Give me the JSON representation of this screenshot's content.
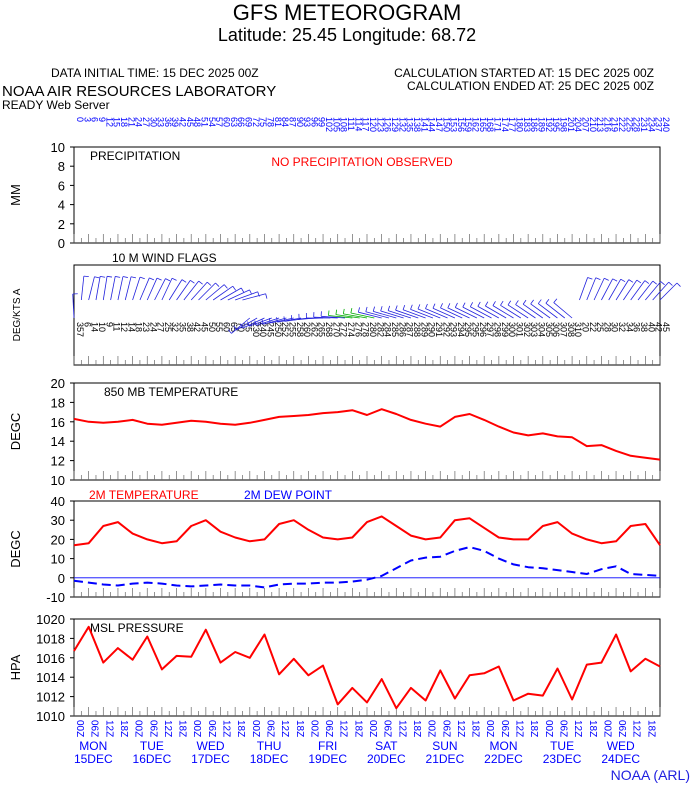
{
  "header": {
    "title": "GFS METEOROGRAM",
    "subtitle": "Latitude: 25.45 Longitude:  68.72",
    "initial_time": "DATA INITIAL TIME: 15 DEC 2025 00Z",
    "calc_started": "CALCULATION STARTED AT: 15 DEC 2025 00Z",
    "calc_ended": "CALCULATION ENDED AT: 25 DEC 2025 00Z",
    "lab": "NOAA AIR RESOURCES LABORATORY",
    "server": "READY Web Server",
    "credit": "NOAA (ARL)"
  },
  "colors": {
    "red": "#ff0000",
    "blue": "#0000ff",
    "green": "#00aa00",
    "wind": "#2222dd"
  },
  "chart_data": [
    {
      "type": "bar",
      "title": "PRECIPITATION",
      "ylabel": "MM",
      "ylim": [
        0,
        10
      ],
      "yticks": [
        0,
        2,
        4,
        6,
        8,
        10
      ],
      "annotation": "NO PRECIPITATION OBSERVED",
      "values": []
    },
    {
      "type": "scatter",
      "title": "10 M  WIND FLAGS",
      "ylabel": "DEG/KTS  A",
      "note": "wind barbs every 3 hours, 81 steps from 15 DEC 00Z to 25 DEC 00Z",
      "direction_deg": [
        357,
        6,
        14,
        10,
        9,
        11,
        12,
        14,
        18,
        23,
        24,
        27,
        25,
        32,
        35,
        38,
        42,
        45,
        50,
        55,
        60,
        65,
        70,
        75,
        230,
        240,
        245,
        250,
        252,
        255,
        258,
        260,
        262,
        265,
        268,
        270,
        272,
        274,
        276,
        278,
        280,
        282,
        284,
        285,
        286,
        287,
        288,
        289,
        290,
        291,
        292,
        293,
        294,
        295,
        295,
        296,
        297,
        298,
        299,
        300,
        301,
        302,
        303,
        304,
        305,
        306,
        307,
        308,
        310,
        20,
        22,
        25,
        28,
        30,
        32,
        34,
        36,
        38,
        40,
        42,
        45
      ]
    },
    {
      "type": "line",
      "title": "850 MB  TEMPERATURE",
      "ylabel": "DEGC",
      "ylim": [
        10,
        20
      ],
      "yticks": [
        10,
        12,
        14,
        16,
        18,
        20
      ],
      "x_hours": [
        0,
        6,
        12,
        18,
        24,
        30,
        36,
        42,
        48,
        54,
        60,
        66,
        72,
        78,
        84,
        90,
        96,
        102,
        108,
        114,
        120,
        126,
        132,
        138,
        144,
        150,
        156,
        162,
        168,
        174,
        180,
        186,
        192,
        198,
        204,
        210,
        216,
        222,
        228,
        234,
        240
      ],
      "series": [
        {
          "name": "",
          "color": "#ff0000",
          "values": [
            16.3,
            16.0,
            15.9,
            16.0,
            16.2,
            15.8,
            15.7,
            15.9,
            16.1,
            16.0,
            15.8,
            15.7,
            15.9,
            16.2,
            16.5,
            16.6,
            16.7,
            16.9,
            17.0,
            17.2,
            16.7,
            17.3,
            16.8,
            16.2,
            15.8,
            15.5,
            16.5,
            16.8,
            16.2,
            15.5,
            14.9,
            14.6,
            14.8,
            14.5,
            14.4,
            13.5,
            13.6,
            13.0,
            12.5,
            12.3,
            12.1
          ]
        }
      ]
    },
    {
      "type": "line",
      "title": "",
      "ylabel": "DEGC",
      "ylim": [
        -10,
        40
      ],
      "yticks": [
        -10,
        0,
        10,
        20,
        30,
        40
      ],
      "x_hours": [
        0,
        6,
        12,
        18,
        24,
        30,
        36,
        42,
        48,
        54,
        60,
        66,
        72,
        78,
        84,
        90,
        96,
        102,
        108,
        114,
        120,
        126,
        132,
        138,
        144,
        150,
        156,
        162,
        168,
        174,
        180,
        186,
        192,
        198,
        204,
        210,
        216,
        222,
        228,
        234,
        240
      ],
      "series": [
        {
          "name": "2M TEMPERATURE",
          "color": "#ff0000",
          "values": [
            17,
            18,
            27,
            29,
            23,
            20,
            18,
            19,
            27,
            30,
            24,
            21,
            19,
            20,
            28,
            30,
            25,
            21,
            20,
            21,
            29,
            32,
            27,
            22,
            20,
            21,
            30,
            31,
            26,
            21,
            20,
            20,
            27,
            29,
            23,
            20,
            18,
            19,
            27,
            28,
            17
          ]
        },
        {
          "name": "2M  DEW POINT",
          "color": "#0000ff",
          "values": [
            -1.5,
            -2.5,
            -3.5,
            -4,
            -3,
            -2.5,
            -3,
            -4,
            -4.5,
            -4,
            -3.5,
            -4,
            -4,
            -5,
            -3.5,
            -3,
            -3,
            -2.5,
            -2.5,
            -2,
            -1,
            1,
            5,
            9,
            10.5,
            11,
            14,
            16,
            14,
            10,
            7,
            5.5,
            5,
            4,
            3,
            2,
            4.5,
            6,
            2,
            1.5,
            1
          ]
        }
      ]
    },
    {
      "type": "line",
      "title": "MSL PRESSURE",
      "ylabel": "HPA",
      "ylim": [
        1010,
        1020
      ],
      "yticks": [
        1010,
        1012,
        1014,
        1016,
        1018,
        1020
      ],
      "x_hours": [
        0,
        6,
        12,
        18,
        24,
        30,
        36,
        42,
        48,
        54,
        60,
        66,
        72,
        78,
        84,
        90,
        96,
        102,
        108,
        114,
        120,
        126,
        132,
        138,
        144,
        150,
        156,
        162,
        168,
        174,
        180,
        186,
        192,
        198,
        204,
        210,
        216,
        222,
        228,
        234,
        240
      ],
      "series": [
        {
          "name": "",
          "color": "#ff0000",
          "values": [
            1016.7,
            1019.2,
            1015.5,
            1017.0,
            1015.8,
            1018.2,
            1014.8,
            1016.2,
            1016.1,
            1018.9,
            1015.5,
            1016.6,
            1016.0,
            1018.4,
            1014.3,
            1015.9,
            1014.2,
            1015.2,
            1011.2,
            1012.9,
            1011.4,
            1013.8,
            1010.8,
            1012.9,
            1011.6,
            1014.7,
            1011.8,
            1014.2,
            1014.4,
            1015.1,
            1011.6,
            1012.3,
            1012.1,
            1014.9,
            1011.7,
            1015.3,
            1015.5,
            1018.4,
            1014.6,
            1015.9,
            1015.1
          ]
        }
      ]
    }
  ],
  "time_axis": {
    "hour_labels": [
      "00Z",
      "06Z",
      "12Z",
      "18Z"
    ],
    "days": [
      {
        "dow": "MON",
        "date": "15DEC"
      },
      {
        "dow": "TUE",
        "date": "16DEC"
      },
      {
        "dow": "WED",
        "date": "17DEC"
      },
      {
        "dow": "THU",
        "date": "18DEC"
      },
      {
        "dow": "FRI",
        "date": "19DEC"
      },
      {
        "dow": "SAT",
        "date": "20DEC"
      },
      {
        "dow": "SUN",
        "date": "21DEC"
      },
      {
        "dow": "MON",
        "date": "22DEC"
      },
      {
        "dow": "TUE",
        "date": "23DEC"
      },
      {
        "dow": "WED",
        "date": "24DEC"
      }
    ]
  }
}
